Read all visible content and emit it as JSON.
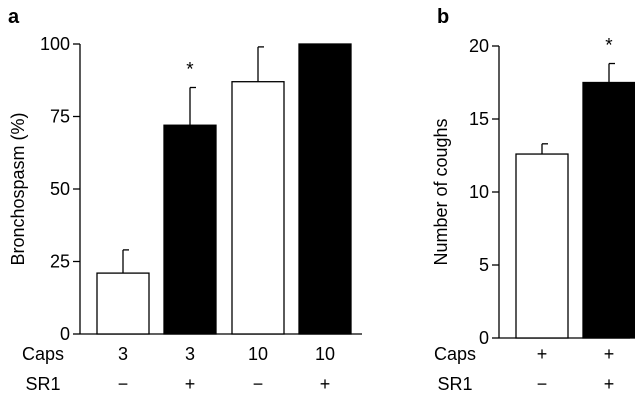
{
  "chart_data": [
    {
      "panel_label": "a",
      "type": "bar",
      "ylabel": "Bronchospasm (%)",
      "ylim": [
        0,
        100
      ],
      "yticks": [
        0,
        25,
        50,
        75,
        100
      ],
      "row_labels": [
        "Caps",
        "SR1"
      ],
      "bars": [
        {
          "caps": "3",
          "sr1": "−",
          "value": 21,
          "error": 8,
          "fill": "white",
          "annotation": ""
        },
        {
          "caps": "3",
          "sr1": "+",
          "value": 72,
          "error": 13,
          "fill": "black",
          "annotation": "*"
        },
        {
          "caps": "10",
          "sr1": "−",
          "value": 87,
          "error": 12,
          "fill": "white",
          "annotation": ""
        },
        {
          "caps": "10",
          "sr1": "+",
          "value": 100,
          "error": 0,
          "fill": "black",
          "annotation": ""
        }
      ]
    },
    {
      "panel_label": "b",
      "type": "bar",
      "ylabel": "Number of coughs",
      "ylim": [
        0,
        20
      ],
      "yticks": [
        0,
        5,
        10,
        15,
        20
      ],
      "row_labels": [
        "Caps",
        "SR1"
      ],
      "bars": [
        {
          "caps": "+",
          "sr1": "−",
          "value": 12.6,
          "error": 0.7,
          "fill": "white",
          "annotation": ""
        },
        {
          "caps": "+",
          "sr1": "+",
          "value": 17.5,
          "error": 1.3,
          "fill": "black",
          "annotation": "*"
        }
      ]
    }
  ]
}
